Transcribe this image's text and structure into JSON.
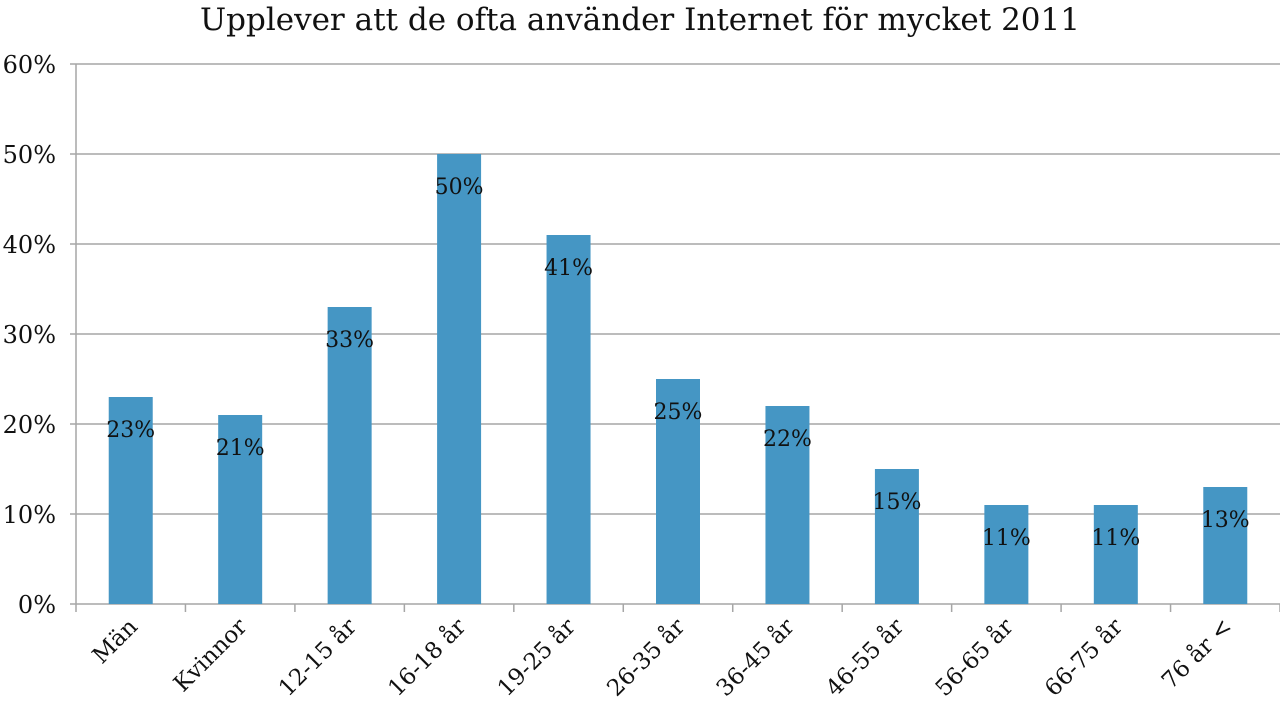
{
  "chart_data": {
    "type": "bar",
    "title": "Upplever att de ofta använder Internet för mycket 2011",
    "categories": [
      "Män",
      "Kvinnor",
      "12-15 år",
      "16-18 år",
      "19-25 år",
      "26-35 år",
      "36-45 år",
      "46-55 år",
      "56-65 år",
      "66-75 år",
      "76 år <"
    ],
    "values": [
      23,
      21,
      33,
      50,
      41,
      25,
      22,
      15,
      11,
      11,
      13
    ],
    "value_labels": [
      "23%",
      "21%",
      "33%",
      "50%",
      "41%",
      "25%",
      "22%",
      "15%",
      "11%",
      "11%",
      "13%"
    ],
    "xlabel": "",
    "ylabel": "",
    "ylim": [
      0,
      60
    ],
    "yticks": [
      "0%",
      "10%",
      "20%",
      "30%",
      "40%",
      "50%",
      "60%"
    ],
    "grid": true,
    "legend": "none",
    "bar_color": "#4596c4"
  }
}
